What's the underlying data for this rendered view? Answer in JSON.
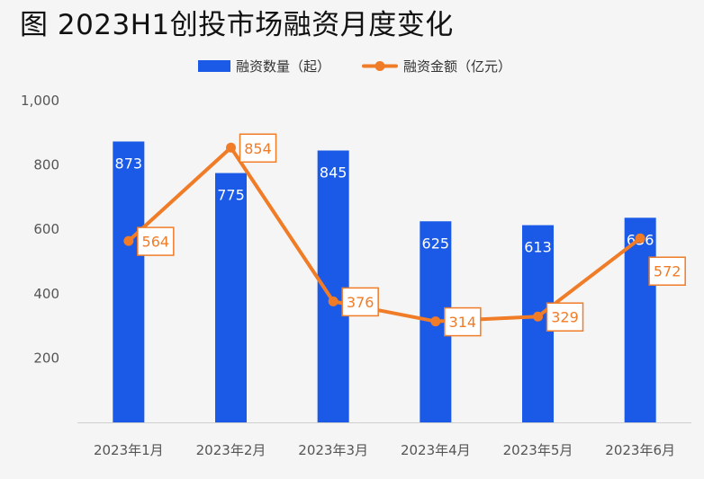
{
  "title": "图 2023H1创投市场融资月度变化",
  "chart_data": {
    "type": "bar",
    "title": "图 2023H1创投市场融资月度变化",
    "categories": [
      "2023年1月",
      "2023年2月",
      "2023年3月",
      "2023年4月",
      "2023年5月",
      "2023年6月"
    ],
    "series": [
      {
        "name": "融资数量（起）",
        "type": "bar",
        "color": "#1a5ae6",
        "values": [
          873,
          775,
          845,
          625,
          613,
          636
        ]
      },
      {
        "name": "融资金额（亿元）",
        "type": "line",
        "color": "#f07c28",
        "values": [
          564,
          854,
          376,
          314,
          329,
          572
        ]
      }
    ],
    "ylim": [
      0,
      1000
    ],
    "yticks": [
      200,
      400,
      600,
      800,
      1000
    ],
    "ytick_labels": [
      "200",
      "400",
      "600",
      "800",
      "1,000"
    ],
    "grid": false,
    "legend_position": "top-center"
  }
}
